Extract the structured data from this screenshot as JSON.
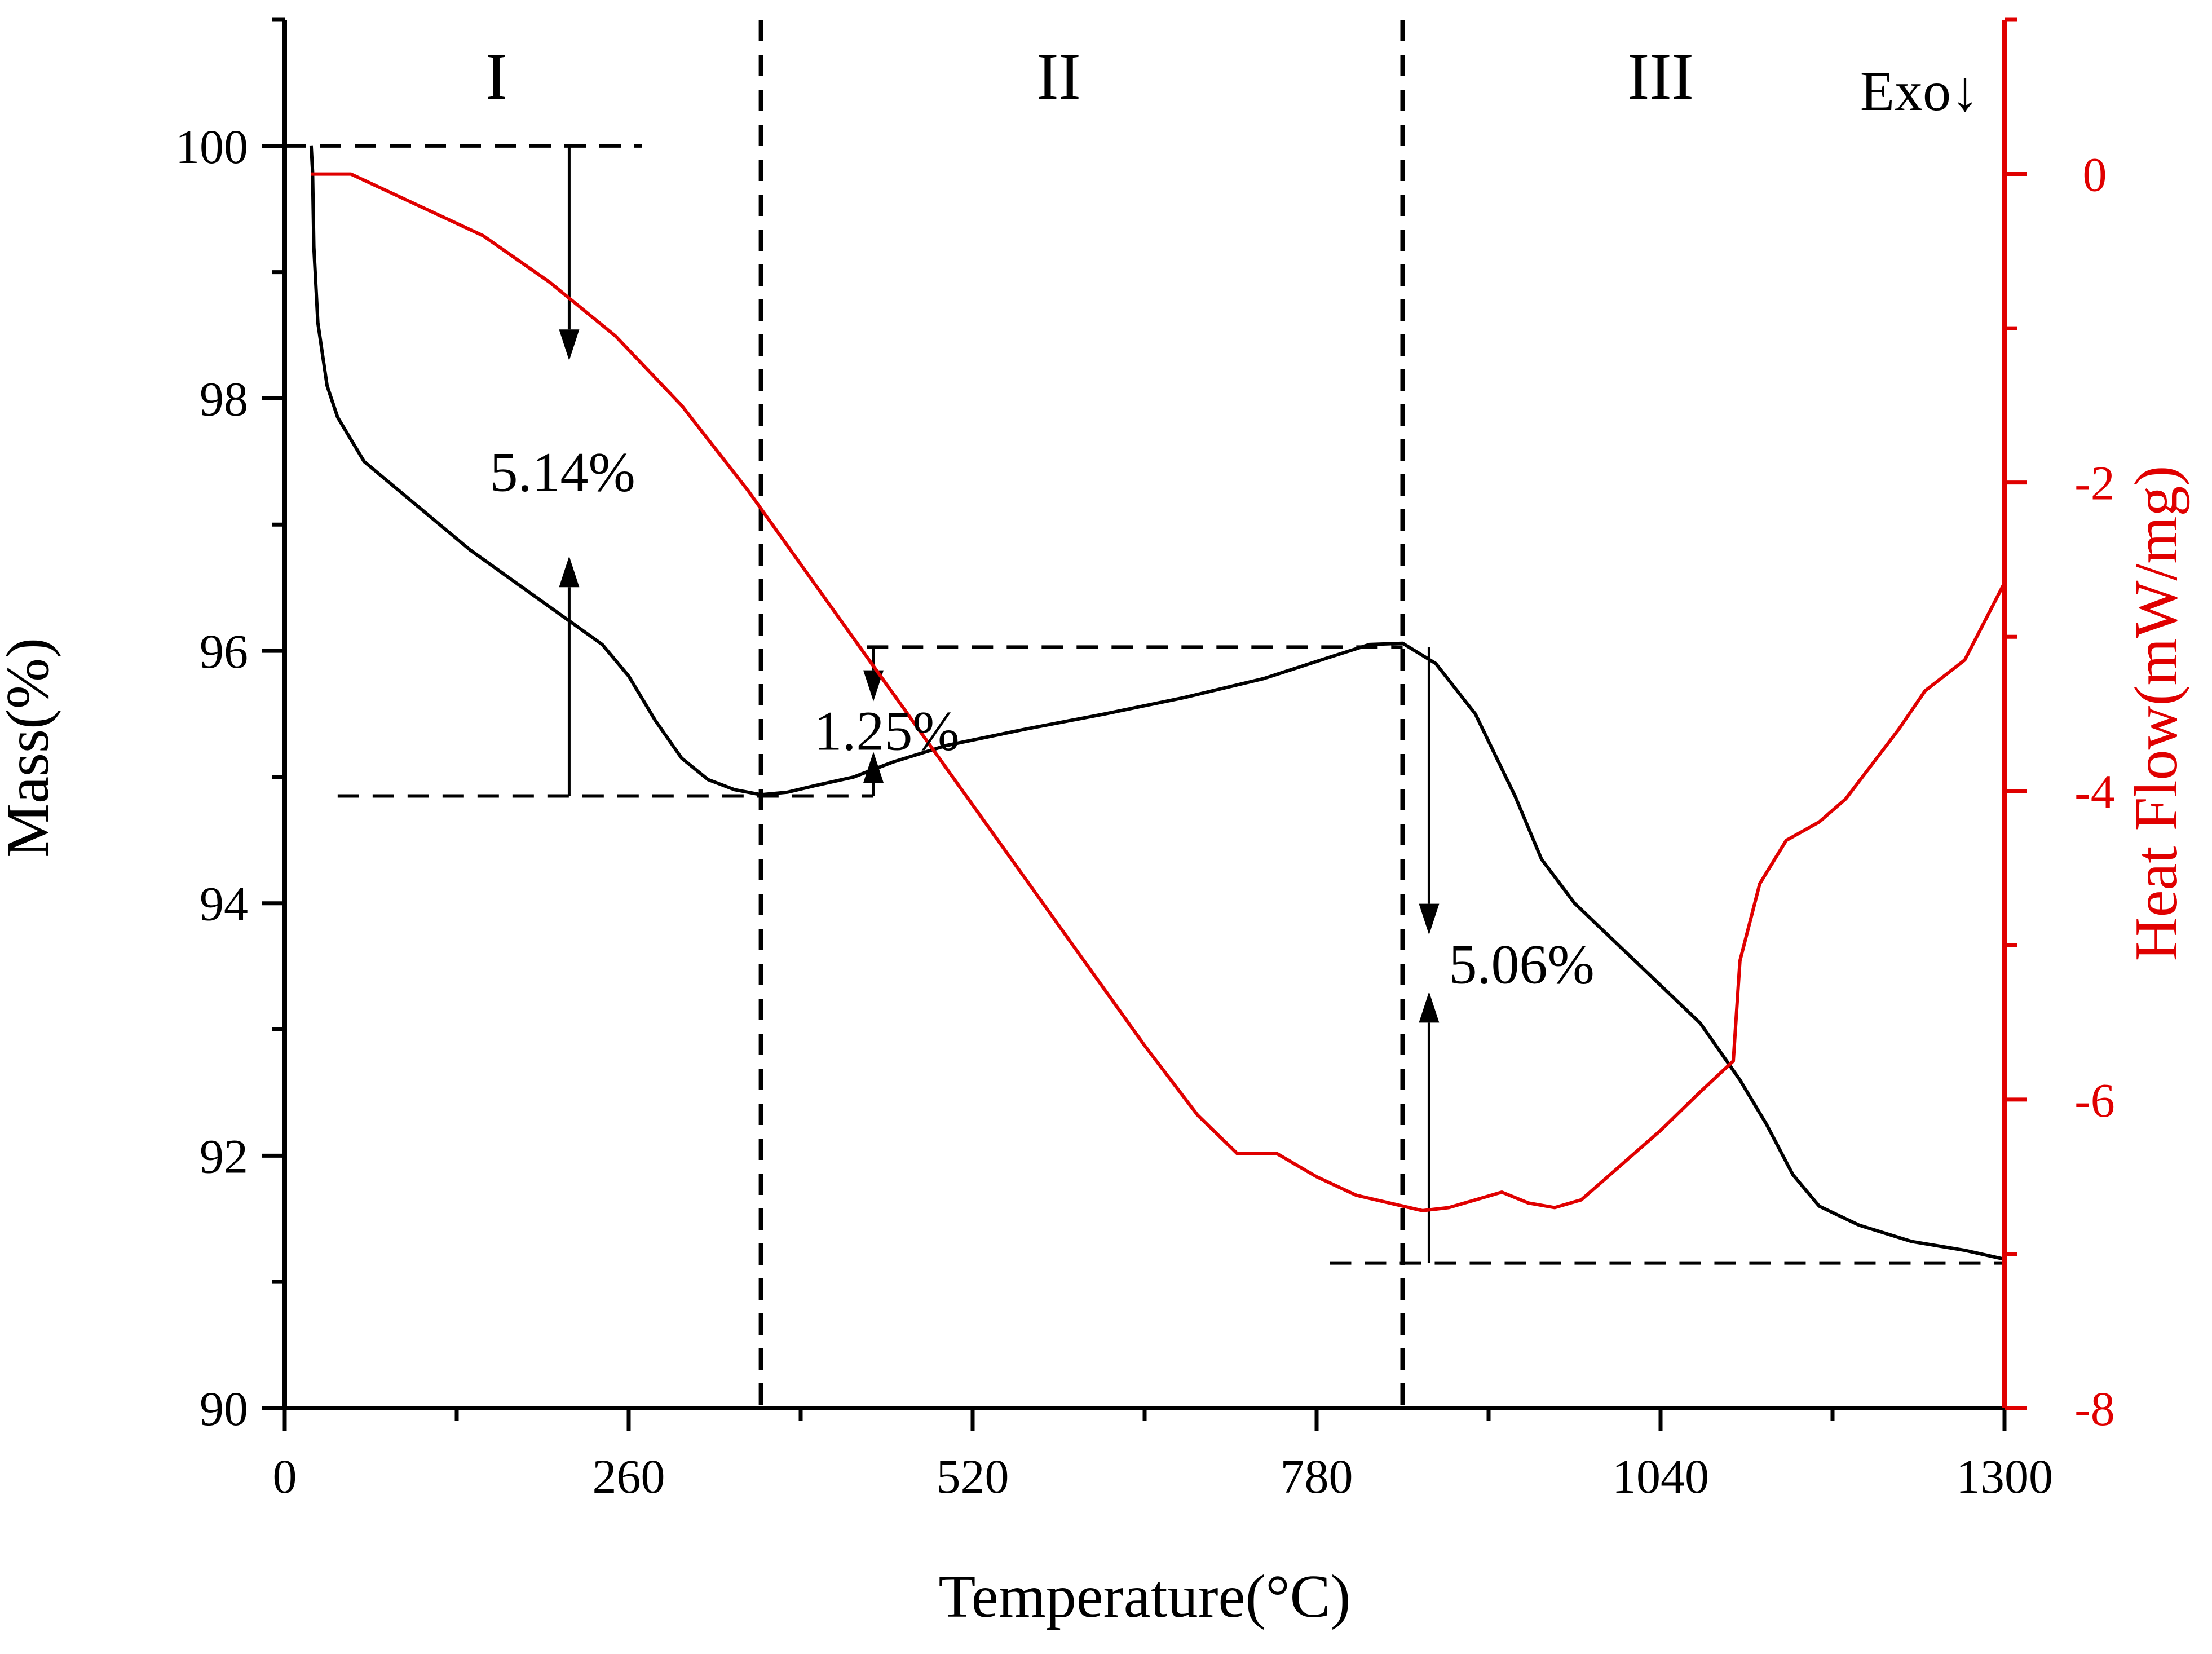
{
  "chart_data": {
    "type": "line",
    "x": {
      "label": "Temperature(°C)",
      "range": [
        0,
        1300
      ],
      "ticks": [
        0,
        260,
        520,
        780,
        1040,
        1300
      ],
      "tick_labels": [
        "0",
        "260",
        "520",
        "780",
        "1040",
        "1300"
      ]
    },
    "y_left": {
      "label": "Mass(%)",
      "range": [
        90,
        101
      ],
      "ticks": [
        90,
        92,
        94,
        96,
        98,
        100
      ],
      "tick_labels": [
        "90",
        "92",
        "94",
        "96",
        "98",
        "100"
      ],
      "color": "#000000"
    },
    "y_right": {
      "label": "Heat Flow(mW/mg)",
      "range": [
        -8,
        1
      ],
      "ticks": [
        -8,
        -6,
        -4,
        -2,
        0
      ],
      "tick_labels": [
        "-8",
        "-6",
        "-4",
        "-2",
        "0"
      ],
      "color": "#e00000"
    },
    "series": [
      {
        "name": "Mass",
        "axis": "left",
        "color": "#000000",
        "points": [
          [
            20,
            100
          ],
          [
            21,
            99.8
          ],
          [
            22,
            99.2
          ],
          [
            25,
            98.6
          ],
          [
            32,
            98.1
          ],
          [
            40,
            97.85
          ],
          [
            60,
            97.5
          ],
          [
            100,
            97.15
          ],
          [
            140,
            96.8
          ],
          [
            180,
            96.5
          ],
          [
            220,
            96.2
          ],
          [
            240,
            96.05
          ],
          [
            260,
            95.8
          ],
          [
            280,
            95.45
          ],
          [
            300,
            95.15
          ],
          [
            320,
            94.98
          ],
          [
            340,
            94.9
          ],
          [
            360,
            94.86
          ],
          [
            380,
            94.88
          ],
          [
            400,
            94.93
          ],
          [
            430,
            95.0
          ],
          [
            460,
            95.12
          ],
          [
            500,
            95.25
          ],
          [
            560,
            95.38
          ],
          [
            620,
            95.5
          ],
          [
            680,
            95.63
          ],
          [
            740,
            95.78
          ],
          [
            790,
            95.95
          ],
          [
            820,
            96.05
          ],
          [
            845,
            96.06
          ],
          [
            870,
            95.9
          ],
          [
            900,
            95.5
          ],
          [
            930,
            94.85
          ],
          [
            950,
            94.35
          ],
          [
            975,
            94.0
          ],
          [
            1010,
            93.65
          ],
          [
            1040,
            93.35
          ],
          [
            1070,
            93.05
          ],
          [
            1100,
            92.6
          ],
          [
            1120,
            92.25
          ],
          [
            1140,
            91.85
          ],
          [
            1160,
            91.6
          ],
          [
            1190,
            91.45
          ],
          [
            1230,
            91.32
          ],
          [
            1270,
            91.25
          ],
          [
            1300,
            91.18
          ]
        ]
      },
      {
        "name": "Heat Flow",
        "axis": "right",
        "color": "#e00000",
        "points": [
          [
            20,
            0.0
          ],
          [
            50,
            0.0
          ],
          [
            100,
            -0.2
          ],
          [
            150,
            -0.4
          ],
          [
            200,
            -0.7
          ],
          [
            250,
            -1.05
          ],
          [
            300,
            -1.5
          ],
          [
            350,
            -2.05
          ],
          [
            400,
            -2.65
          ],
          [
            450,
            -3.25
          ],
          [
            500,
            -3.85
          ],
          [
            550,
            -4.45
          ],
          [
            600,
            -5.05
          ],
          [
            650,
            -5.65
          ],
          [
            690,
            -6.1
          ],
          [
            720,
            -6.35
          ],
          [
            750,
            -6.35
          ],
          [
            780,
            -6.5
          ],
          [
            810,
            -6.62
          ],
          [
            840,
            -6.68
          ],
          [
            860,
            -6.72
          ],
          [
            880,
            -6.7
          ],
          [
            900,
            -6.65
          ],
          [
            920,
            -6.6
          ],
          [
            940,
            -6.67
          ],
          [
            960,
            -6.7
          ],
          [
            980,
            -6.65
          ],
          [
            1000,
            -6.5
          ],
          [
            1040,
            -6.2
          ],
          [
            1070,
            -5.95
          ],
          [
            1095,
            -5.75
          ],
          [
            1100,
            -5.1
          ],
          [
            1115,
            -4.6
          ],
          [
            1135,
            -4.32
          ],
          [
            1160,
            -4.2
          ],
          [
            1180,
            -4.05
          ],
          [
            1220,
            -3.6
          ],
          [
            1240,
            -3.35
          ],
          [
            1270,
            -3.15
          ],
          [
            1300,
            -2.65
          ]
        ]
      }
    ],
    "regions": [
      {
        "label": "I",
        "x_center": 160
      },
      {
        "label": "II",
        "x_center": 585
      },
      {
        "label": "III",
        "x_center": 1040
      }
    ],
    "region_boundaries": [
      360,
      845
    ],
    "guide_lines": [
      {
        "x1": 0,
        "x2": 270,
        "y": 100
      },
      {
        "x1": 40,
        "x2": 445,
        "y": 94.85
      },
      {
        "x1": 440,
        "x2": 845,
        "y": 96.03
      },
      {
        "x1": 790,
        "x2": 1300,
        "y": 91.15
      }
    ],
    "arrows": [
      {
        "x": 215,
        "from": 100,
        "to": 98.3
      },
      {
        "x": 215,
        "from": 94.85,
        "to": 96.75
      },
      {
        "x": 445,
        "from": 96.03,
        "to": 95.6
      },
      {
        "x": 445,
        "from": 94.85,
        "to": 95.2
      },
      {
        "x": 865,
        "from": 96.03,
        "to": 93.75
      },
      {
        "x": 865,
        "from": 91.15,
        "to": 93.3
      }
    ],
    "annotations": [
      {
        "text": "5.14%",
        "x": 210,
        "y": 97.4
      },
      {
        "text": "1.25%",
        "x": 455,
        "y": 95.35
      },
      {
        "text": "5.06%",
        "x": 935,
        "y": 93.5
      }
    ],
    "corner_label": "Exo↓"
  }
}
